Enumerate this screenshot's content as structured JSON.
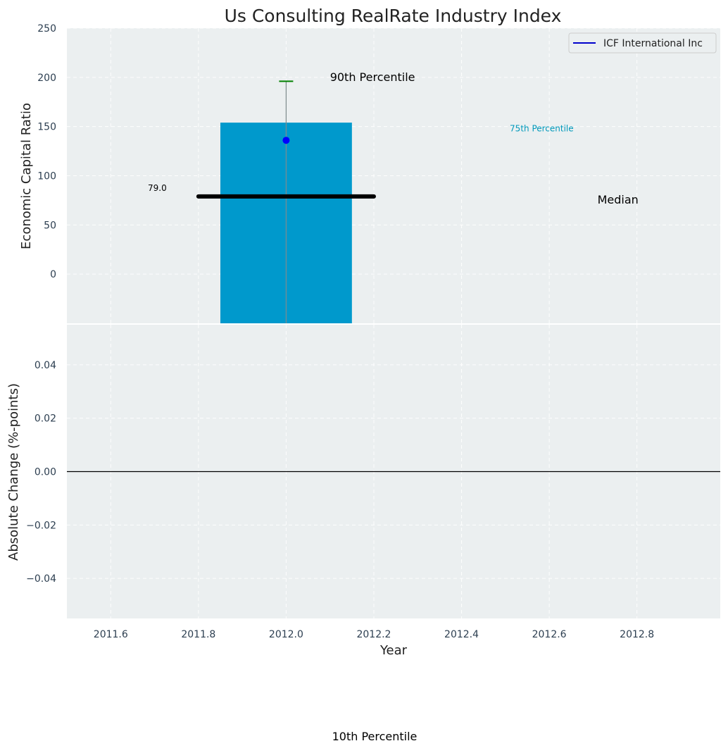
{
  "chart_data": {
    "type": "bar",
    "title": "Us Consulting RealRate Industry Index",
    "xlabel": "Year",
    "xlim": [
      2011.5,
      2012.99
    ],
    "x_ticks": [
      2011.6,
      2011.8,
      2012.0,
      2012.2,
      2012.4,
      2012.6,
      2012.8
    ],
    "x_tick_labels": [
      "2011.6",
      "2011.8",
      "2012.0",
      "2012.2",
      "2012.4",
      "2012.6",
      "2012.8"
    ],
    "grid": true,
    "colors": {
      "background": "#ebeff0",
      "bar": "#0099cc",
      "median_line": "#000000",
      "company_point": "#0000ff",
      "ci_cap": "#008000",
      "ci_line": "#7f8c8d",
      "legend_line": "#0000cc",
      "label_75": "#0099bb",
      "tick_text": "#2c3e50"
    },
    "top_panel": {
      "ylabel": "Economic Capital Ratio",
      "ylim": [
        -50,
        250
      ],
      "y_ticks": [
        0,
        50,
        100,
        150,
        200,
        250
      ],
      "y_tick_labels": [
        "0",
        "50",
        "100",
        "150",
        "200",
        "250"
      ],
      "bar": {
        "x": 2012.0,
        "width": 0.3,
        "bottom": -50,
        "top": 154
      },
      "median": {
        "x_start": 2011.8,
        "x_end": 2012.2,
        "value": 79.0,
        "label": "79.0"
      },
      "company_point": {
        "x": 2012.0,
        "y": 136
      },
      "interval": {
        "x": 2012.0,
        "low": -50,
        "high": 196
      },
      "legend": {
        "position": "top-right",
        "entries": [
          "ICF International Inc"
        ]
      },
      "annotations": {
        "p90": {
          "text": "90th Percentile",
          "x": 2012.1,
          "y": 200
        },
        "p75": {
          "text": "75th Percentile",
          "x": 2012.51,
          "y": 148
        },
        "median": {
          "text": "Median",
          "x": 2012.71,
          "y": 76
        },
        "p10": {
          "text": "10th Percentile"
        }
      }
    },
    "bottom_panel": {
      "ylabel": "Absolute Change (%-points)",
      "ylim": [
        -0.055,
        0.055
      ],
      "y_ticks": [
        -0.04,
        -0.02,
        0.0,
        0.02,
        0.04
      ],
      "y_tick_labels": [
        "−0.04",
        "−0.02",
        "0.00",
        "0.02",
        "0.04"
      ],
      "zero_line": 0.0
    }
  }
}
